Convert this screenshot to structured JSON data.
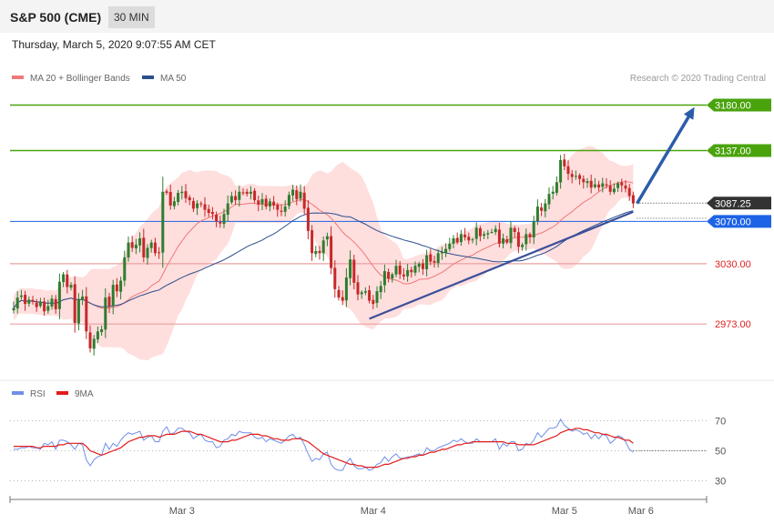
{
  "header": {
    "title": "S&P 500 (CME)",
    "timeframe": "30 MIN",
    "timestamp": "Thursday, March 5, 2020 9:07:55 AM CET"
  },
  "legend": [
    {
      "label": "MA 20 + Bollinger Bands",
      "color": "#f07878"
    },
    {
      "label": "MA 50",
      "color": "#2c4f8c"
    }
  ],
  "credit": "Research © 2020 Trading Central",
  "colors": {
    "up": "#2e7d2e",
    "down": "#c62828",
    "resistance": "#4aa30d",
    "pivot": "#1d63e6",
    "support": "#e8a0a0",
    "last": "#333333"
  },
  "rsi_legend": [
    {
      "label": "RSI",
      "color": "#6f8fe8"
    },
    {
      "label": "9MA",
      "color": "#e31b1b"
    }
  ],
  "chart_data": [
    {
      "type": "candlestick",
      "ylim": [
        2925,
        3195
      ],
      "price_levels": [
        {
          "value": 3180.0,
          "label": "3180.00",
          "kind": "resistance"
        },
        {
          "value": 3137.0,
          "label": "3137.00",
          "kind": "resistance"
        },
        {
          "value": 3087.25,
          "label": "3087.25",
          "kind": "last"
        },
        {
          "value": 3070.0,
          "label": "3070.00",
          "kind": "pivot"
        },
        {
          "value": 3030.0,
          "label": "3030.00",
          "kind": "support"
        },
        {
          "value": 2973.0,
          "label": "2973.00",
          "kind": "support"
        }
      ],
      "x_ticks": [
        {
          "label": "Mar 3",
          "index": 44
        },
        {
          "label": "Mar 4",
          "index": 94
        },
        {
          "label": "Mar 5",
          "index": 144
        },
        {
          "label": "Mar 6",
          "index": 164
        }
      ],
      "trendline": {
        "from": {
          "index": 93,
          "value": 2978
        },
        "to": {
          "index": 162,
          "value": 3079
        }
      },
      "forecast_arrow": {
        "from": {
          "index": 163,
          "value": 3087
        },
        "to": {
          "index": 178,
          "value": 3178
        }
      },
      "closes": [
        2988,
        2998,
        3000,
        2992,
        2996,
        2994,
        2989,
        2994,
        2985,
        2990,
        2997,
        2987,
        3013,
        3020,
        3008,
        3010,
        2974,
        2996,
        2999,
        2966,
        2950,
        2959,
        2966,
        2968,
        2998,
        2990,
        3010,
        3004,
        3014,
        3036,
        3050,
        3045,
        3048,
        3054,
        3036,
        3045,
        3050,
        3040,
        3040,
        3098,
        3097,
        3085,
        3089,
        3097,
        3098,
        3092,
        3090,
        3082,
        3087,
        3087,
        3081,
        3078,
        3077,
        3070,
        3068,
        3077,
        3087,
        3094,
        3090,
        3098,
        3097,
        3096,
        3098,
        3090,
        3086,
        3091,
        3084,
        3089,
        3085,
        3081,
        3079,
        3084,
        3095,
        3100,
        3091,
        3098,
        3082,
        3061,
        3040,
        3042,
        3040,
        3052,
        3056,
        3026,
        3006,
        2998,
        2995,
        3017,
        3034,
        3012,
        3001,
        3003,
        3004,
        2995,
        2992,
        3004,
        3009,
        3023,
        3016,
        3020,
        3028,
        3020,
        3018,
        3024,
        3022,
        3028,
        3030,
        3025,
        3038,
        3032,
        3031,
        3040,
        3041,
        3044,
        3049,
        3054,
        3050,
        3058,
        3055,
        3052,
        3053,
        3064,
        3056,
        3058,
        3059,
        3060,
        3063,
        3049,
        3054,
        3050,
        3064,
        3060,
        3046,
        3048,
        3058,
        3055,
        3070,
        3084,
        3080,
        3087,
        3096,
        3098,
        3107,
        3128,
        3122,
        3115,
        3112,
        3113,
        3110,
        3107,
        3108,
        3102,
        3105,
        3102,
        3106,
        3104,
        3098,
        3101,
        3106,
        3104,
        3101,
        3094,
        3087
      ]
    },
    {
      "type": "line",
      "title": "RSI",
      "ylim": [
        20,
        80
      ],
      "y_ticks": [
        70,
        50,
        30
      ],
      "series": [
        {
          "name": "RSI",
          "values": [
            51,
            51,
            52,
            52,
            53,
            52,
            52,
            51,
            55,
            54,
            56,
            51,
            57,
            57,
            56,
            54,
            51,
            55,
            54,
            44,
            40,
            44,
            46,
            47,
            55,
            51,
            55,
            53,
            57,
            60,
            62,
            61,
            62,
            63,
            57,
            59,
            60,
            56,
            56,
            63,
            66,
            61,
            62,
            65,
            65,
            63,
            62,
            58,
            60,
            61,
            57,
            56,
            56,
            52,
            53,
            57,
            58,
            61,
            60,
            63,
            62,
            62,
            62,
            59,
            58,
            59,
            56,
            58,
            57,
            56,
            55,
            57,
            60,
            61,
            58,
            59,
            54,
            48,
            43,
            45,
            44,
            48,
            49,
            41,
            38,
            37,
            37,
            42,
            45,
            40,
            38,
            38,
            39,
            37,
            38,
            41,
            42,
            46,
            43,
            46,
            48,
            45,
            45,
            46,
            46,
            47,
            48,
            47,
            52,
            50,
            50,
            52,
            53,
            54,
            55,
            57,
            56,
            58,
            56,
            55,
            55,
            58,
            56,
            56,
            56,
            56,
            58,
            51,
            55,
            53,
            56,
            56,
            50,
            51,
            55,
            54,
            57,
            62,
            59,
            62,
            65,
            65,
            66,
            71,
            67,
            65,
            63,
            64,
            63,
            61,
            62,
            58,
            61,
            58,
            61,
            60,
            55,
            57,
            60,
            59,
            56,
            51,
            49
          ]
        },
        {
          "name": "9MA",
          "values": [
            53,
            53,
            53,
            53,
            53,
            53,
            52,
            52,
            53,
            53,
            53,
            53,
            54,
            54,
            55,
            55,
            55,
            55,
            55,
            53,
            50,
            49,
            48,
            47,
            48,
            49,
            50,
            51,
            52,
            54,
            56,
            57,
            58,
            59,
            59,
            60,
            60,
            60,
            59,
            60,
            61,
            61,
            61,
            62,
            63,
            63,
            63,
            62,
            61,
            61,
            60,
            59,
            58,
            57,
            56,
            56,
            56,
            57,
            57,
            58,
            59,
            60,
            61,
            61,
            61,
            60,
            60,
            59,
            58,
            58,
            57,
            57,
            57,
            58,
            58,
            58,
            57,
            56,
            54,
            52,
            50,
            48,
            47,
            46,
            45,
            44,
            43,
            42,
            41,
            41,
            40,
            40,
            39,
            39,
            39,
            39,
            40,
            41,
            41,
            42,
            43,
            44,
            45,
            45,
            46,
            46,
            47,
            47,
            48,
            49,
            49,
            50,
            51,
            51,
            52,
            53,
            54,
            54,
            55,
            55,
            56,
            56,
            56,
            56,
            56,
            56,
            56,
            56,
            56,
            55,
            55,
            55,
            54,
            54,
            54,
            54,
            54,
            55,
            56,
            57,
            58,
            59,
            60,
            62,
            63,
            64,
            64,
            65,
            65,
            64,
            64,
            63,
            62,
            62,
            61,
            61,
            60,
            59,
            59,
            58,
            57,
            57,
            55
          ]
        }
      ]
    }
  ]
}
